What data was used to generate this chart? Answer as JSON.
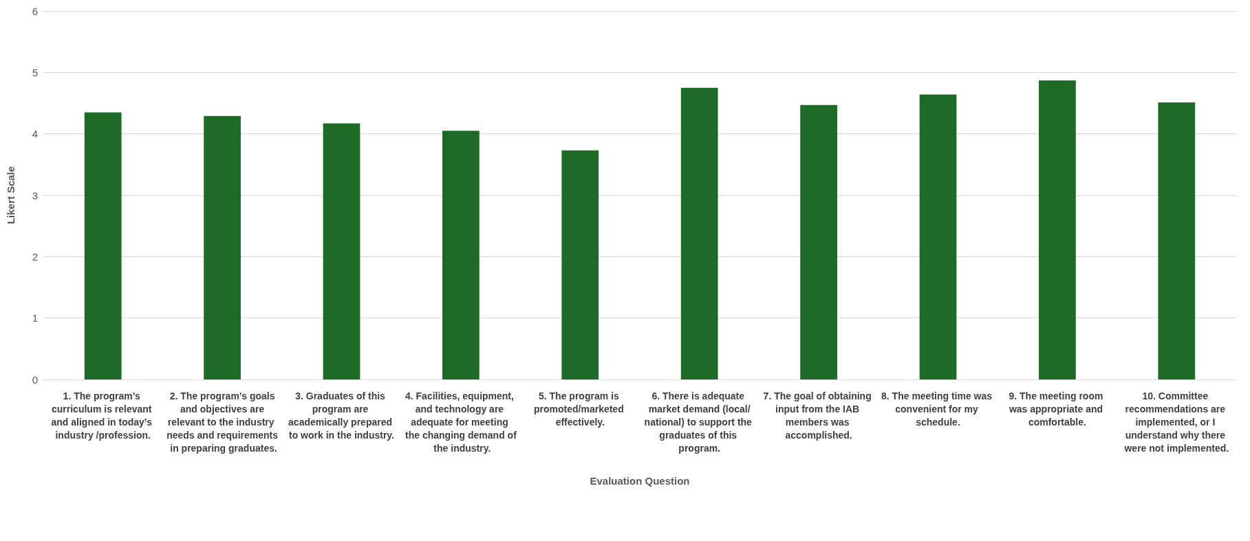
{
  "chart_data": {
    "type": "bar",
    "xlabel": "Evaluation Question",
    "ylabel": "Likert Scale",
    "categories": [
      "1. The program’s curriculum is relevant and aligned in today’s industry /profession.",
      "2. The program’s goals and objectives are relevant to the industry needs and requirements in preparing graduates.",
      "3. Graduates of this program are academically prepared to work in the industry.",
      "4. Facilities, equipment, and technology are adequate for meeting the changing demand of the industry.",
      "5. The program is promoted/marketed effectively.",
      "6. There is adequate market demand (local/national) to support the graduates of this program.",
      "7. The goal of obtaining input from the IAB members was accomplished.",
      "8. The meeting time was convenient for my schedule.",
      "9. The meeting room was appropriate and comfortable.",
      "10. Committee recommendations are implemented, or I understand why there were not implemented."
    ],
    "values": [
      4.35,
      4.29,
      4.17,
      4.05,
      3.73,
      4.75,
      4.47,
      4.64,
      4.87,
      4.51
    ],
    "color": "#1e6b27",
    "ylim": [
      0,
      6
    ],
    "yticks": [
      0,
      1,
      2,
      3,
      4,
      5,
      6
    ],
    "grid": "y"
  }
}
